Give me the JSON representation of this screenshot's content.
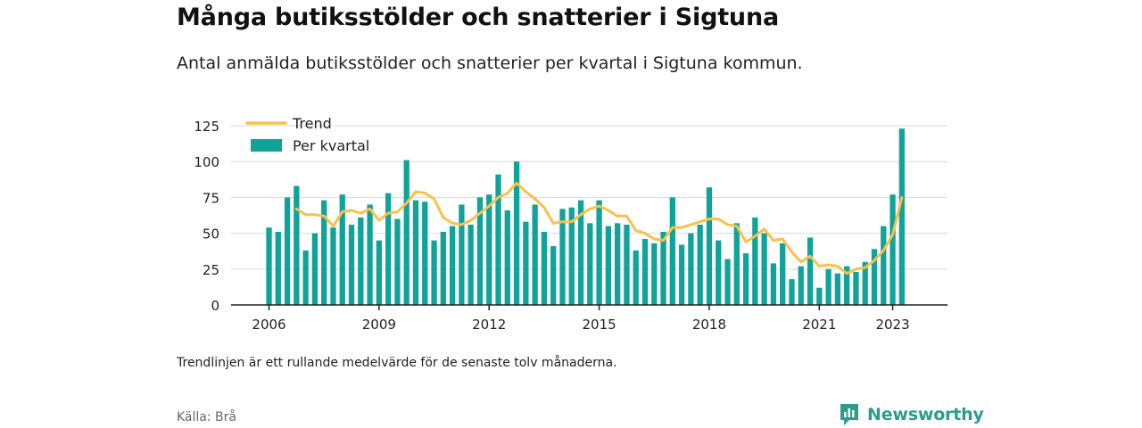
{
  "header": {
    "title": "Många butiksstölder och snatterier i Sigtuna",
    "subtitle": "Antal anmälda butiksstölder och snatterier per kvartal i Sigtuna kommun."
  },
  "footer": {
    "note": "Trendlinjen är ett rullande medelvärde för de senaste tolv månaderna.",
    "source": "Källa: Brå",
    "brand": "Newsworthy"
  },
  "colors": {
    "bar": "#0fa399",
    "trend": "#f9c04c",
    "brand": "#2a9d8f"
  },
  "brand_icon": "newsworthy-chart-icon",
  "chart_data": {
    "type": "bar",
    "title": "",
    "xlabel": "",
    "ylabel": "",
    "ylim": [
      0,
      125
    ],
    "yticks": [
      0,
      25,
      50,
      75,
      100,
      125
    ],
    "xticks": [
      "2006",
      "2009",
      "2012",
      "2015",
      "2018",
      "2021",
      "2023"
    ],
    "grid": true,
    "legend_position": "top-left",
    "start_period": "2006 Q1",
    "end_period": "2023 Q2",
    "series": [
      {
        "name": "Per kvartal",
        "kind": "bar",
        "values": [
          54,
          51,
          75,
          83,
          38,
          50,
          73,
          54,
          77,
          56,
          61,
          70,
          45,
          78,
          60,
          101,
          73,
          72,
          45,
          51,
          55,
          70,
          56,
          75,
          77,
          91,
          66,
          100,
          58,
          70,
          51,
          41,
          67,
          68,
          73,
          57,
          73,
          55,
          57,
          56,
          38,
          46,
          43,
          51,
          75,
          42,
          50,
          56,
          82,
          45,
          32,
          57,
          36,
          61,
          50,
          29,
          43,
          18,
          27,
          47,
          12,
          25,
          22,
          27,
          23,
          30,
          39,
          55,
          77,
          123
        ]
      },
      {
        "name": "Trend",
        "kind": "line",
        "values": [
          null,
          null,
          null,
          67,
          63,
          63,
          62,
          55,
          65,
          66,
          64,
          67,
          59,
          64,
          65,
          71,
          79,
          78,
          74,
          61,
          57,
          56,
          59,
          64,
          69,
          75,
          78,
          85,
          79,
          74,
          68,
          57,
          58,
          58,
          63,
          67,
          69,
          66,
          62,
          62,
          52,
          50,
          46,
          45,
          54,
          54,
          56,
          58,
          60,
          60,
          56,
          55,
          44,
          48,
          53,
          45,
          46,
          37,
          30,
          34,
          27,
          28,
          27,
          22,
          25,
          26,
          31,
          38,
          49,
          75
        ]
      }
    ]
  }
}
